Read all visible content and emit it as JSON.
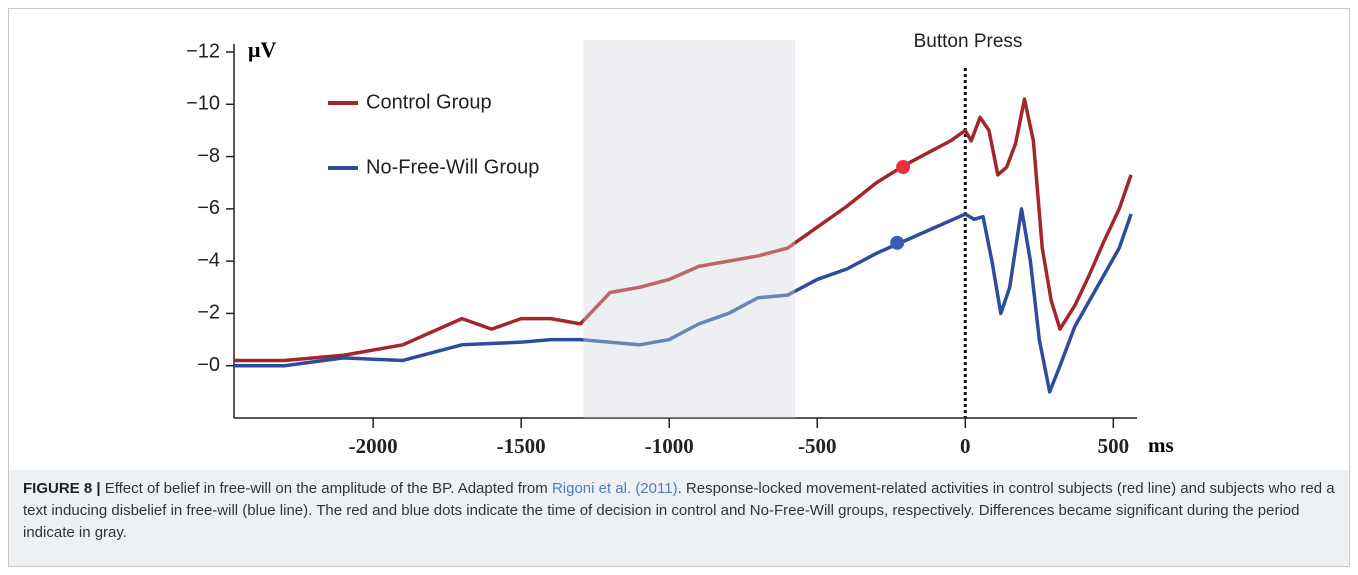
{
  "chart_data": {
    "type": "line",
    "y_label": "μV",
    "x_label": "ms",
    "annotation": "Button Press",
    "xlim": [
      -2470,
      580
    ],
    "xticks": [
      -2000,
      -1500,
      -1000,
      -500,
      0,
      500
    ],
    "ylim": [
      -12,
      2
    ],
    "y_inverted": true,
    "yticks": [
      {
        "value": -12,
        "label": "−12"
      },
      {
        "value": -10,
        "label": "−10"
      },
      {
        "value": -8,
        "label": "−8"
      },
      {
        "value": -6,
        "label": "−6"
      },
      {
        "value": -4,
        "label": "−4"
      },
      {
        "value": -2,
        "label": "−2"
      },
      {
        "value": 0,
        "label": "−0"
      }
    ],
    "event_line": 0,
    "shaded_region": [
      -1290,
      -575
    ],
    "legend": "upper-left",
    "series": [
      {
        "name": "Control Group",
        "color": "#a3262a",
        "x": [
          -2470,
          -2300,
          -2100,
          -1900,
          -1700,
          -1600,
          -1500,
          -1400,
          -1300,
          -1200,
          -1100,
          -1000,
          -900,
          -800,
          -700,
          -600,
          -500,
          -400,
          -300,
          -200,
          -100,
          -50,
          0,
          20,
          50,
          80,
          110,
          140,
          170,
          200,
          230,
          260,
          290,
          320,
          370,
          420,
          470,
          520,
          560
        ],
        "values": [
          -0.2,
          -0.2,
          -0.4,
          -0.8,
          -1.8,
          -1.4,
          -1.8,
          -1.8,
          -1.6,
          -2.8,
          -3.0,
          -3.3,
          -3.8,
          -4.0,
          -4.2,
          -4.5,
          -5.3,
          -6.1,
          -7.0,
          -7.7,
          -8.3,
          -8.6,
          -9.0,
          -8.6,
          -9.5,
          -9.0,
          -7.3,
          -7.6,
          -8.5,
          -10.2,
          -8.6,
          -4.5,
          -2.5,
          -1.4,
          -2.3,
          -3.5,
          -4.8,
          -6.0,
          -7.3
        ],
        "marker": {
          "x": -210,
          "y": -7.6
        }
      },
      {
        "name": "No-Free-Will Group",
        "color": "#2c4d9c",
        "x": [
          -2470,
          -2300,
          -2100,
          -1900,
          -1700,
          -1500,
          -1400,
          -1300,
          -1200,
          -1100,
          -1000,
          -900,
          -800,
          -700,
          -600,
          -500,
          -400,
          -300,
          -200,
          -100,
          0,
          30,
          60,
          90,
          120,
          150,
          190,
          220,
          250,
          285,
          320,
          370,
          420,
          470,
          520,
          560
        ],
        "values": [
          0,
          0,
          -0.3,
          -0.2,
          -0.8,
          -0.9,
          -1.0,
          -1.0,
          -0.9,
          -0.8,
          -1.0,
          -1.6,
          -2.0,
          -2.6,
          -2.7,
          -3.3,
          -3.7,
          -4.3,
          -4.8,
          -5.3,
          -5.8,
          -5.6,
          -5.7,
          -4.0,
          -2.0,
          -3.0,
          -6.0,
          -4.0,
          -1.0,
          1.0,
          0.0,
          -1.5,
          -2.5,
          -3.5,
          -4.5,
          -5.8
        ],
        "marker": {
          "x": -230,
          "y": -4.7
        }
      }
    ]
  },
  "caption": {
    "label": "FIGURE 8 |",
    "text_1": "Effect of belief in free-will on the amplitude of the BP. Adapted from",
    "link": "Rigoni et al. (2011)",
    "text_2": ". Response-locked movement-related activities in control subjects (red line) and subjects who red a text inducing disbelief in free-will (blue line). The red and blue dots indicate the time of decision in control and No-Free-Will groups, respectively. Differences became significant during the period indicate in gray."
  }
}
